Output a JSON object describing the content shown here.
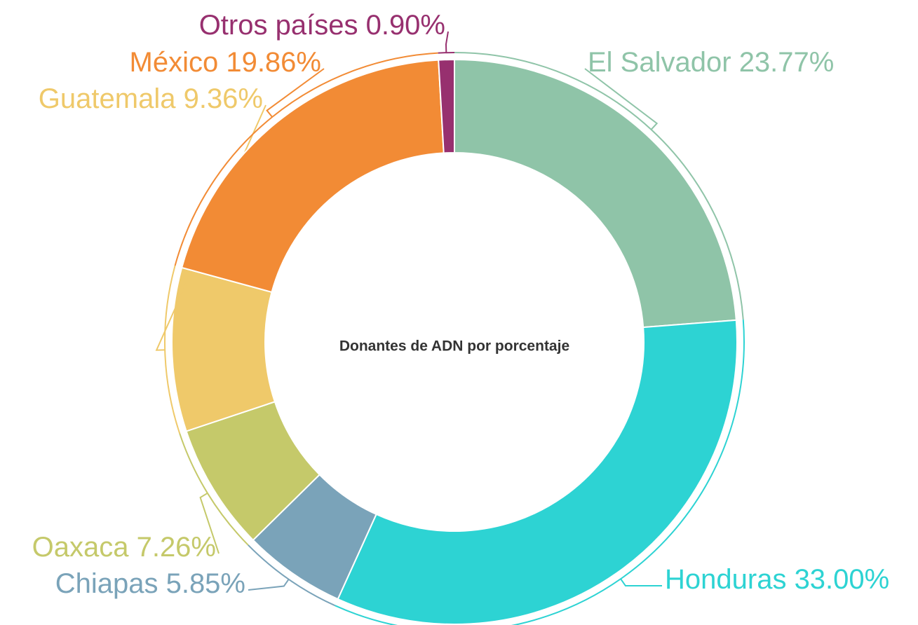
{
  "chart_data": {
    "type": "pie",
    "title": "Donantes de ADN por porcentaje",
    "categories": [
      "El Salvador",
      "Honduras",
      "Chiapas",
      "Oaxaca",
      "Guatemala",
      "México",
      "Otros países"
    ],
    "values": [
      23.77,
      33.0,
      5.85,
      7.26,
      9.36,
      19.86,
      0.9
    ],
    "value_labels": [
      "23.77%",
      "33.00%",
      "5.85%",
      "7.26%",
      "9.36%",
      "19.86%",
      "0.90%"
    ],
    "colors": [
      "#8fc4a8",
      "#2dd3d3",
      "#7aa3b9",
      "#c5c96a",
      "#efc96a",
      "#f28b35",
      "#97306f"
    ]
  }
}
